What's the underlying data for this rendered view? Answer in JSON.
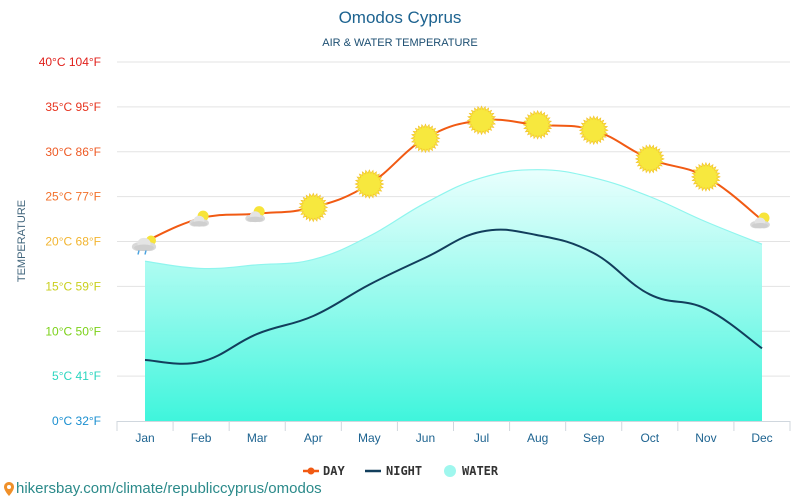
{
  "chart_data": {
    "type": "line",
    "title": "Omodos Cyprus",
    "subtitle": "AIR & WATER TEMPERATURE",
    "ylabel": "TEMPERATURE",
    "xlabel": "",
    "ylim": [
      0,
      40
    ],
    "grid": true,
    "legend_position": "bottom-center",
    "categories": [
      "Jan",
      "Feb",
      "Mar",
      "Apr",
      "May",
      "Jun",
      "Jul",
      "Aug",
      "Sep",
      "Oct",
      "Nov",
      "Dec"
    ],
    "yticks": [
      {
        "value": 40,
        "label": "40°C 104°F",
        "color": "#e0201b"
      },
      {
        "value": 35,
        "label": "35°C 95°F",
        "color": "#e6341f"
      },
      {
        "value": 30,
        "label": "30°C 86°F",
        "color": "#ee5a24"
      },
      {
        "value": 25,
        "label": "25°C 77°F",
        "color": "#f2712b"
      },
      {
        "value": 20,
        "label": "20°C 68°F",
        "color": "#f2b531"
      },
      {
        "value": 15,
        "label": "15°C 59°F",
        "color": "#c9cf1d"
      },
      {
        "value": 10,
        "label": "10°C 50°F",
        "color": "#7cd11a"
      },
      {
        "value": 5,
        "label": "5°C 41°F",
        "color": "#2bd6bf"
      },
      {
        "value": 0,
        "label": "0°C 32°F",
        "color": "#1a8fd0"
      }
    ],
    "series": [
      {
        "name": "DAY",
        "color": "#f15a13",
        "values": [
          20.0,
          22.6,
          23.1,
          23.8,
          26.4,
          31.5,
          33.5,
          33.0,
          32.4,
          29.2,
          27.2,
          22.4
        ],
        "icons": [
          "rain-cloud-sun",
          "partly-cloudy",
          "partly-cloudy",
          "sun",
          "sun",
          "sun",
          "sun",
          "sun",
          "sun",
          "sun",
          "sun",
          "partly-cloudy"
        ]
      },
      {
        "name": "NIGHT",
        "color": "#123e5c",
        "values": [
          6.8,
          6.6,
          9.7,
          11.7,
          15.2,
          18.2,
          21.1,
          20.7,
          18.7,
          14.1,
          12.5,
          8.1
        ]
      },
      {
        "name": "WATER",
        "color": "#8ff5ee",
        "values": [
          17.8,
          17.0,
          17.4,
          18.0,
          20.6,
          24.3,
          27.1,
          28.0,
          27.1,
          25.0,
          22.2,
          19.7
        ]
      }
    ]
  },
  "legend": {
    "day": "DAY",
    "night": "NIGHT",
    "water": "WATER"
  },
  "footer": {
    "url": "hikersbay.com/climate/republiccyprus/omodos",
    "icon": "map-pin-icon"
  }
}
